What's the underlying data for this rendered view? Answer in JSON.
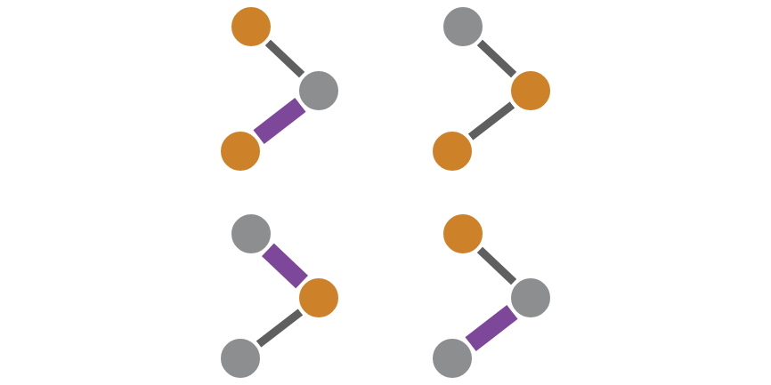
{
  "colors": {
    "orange": "#CD8128",
    "gray": "#8D8E90",
    "purple": "#7D479A",
    "dark": "#5F5F5F",
    "background": "#FFFFFF"
  },
  "graphs": [
    {
      "name": "graph-top-left",
      "nodes": [
        {
          "id": "a",
          "color": "orange"
        },
        {
          "id": "b",
          "color": "gray"
        },
        {
          "id": "c",
          "color": "orange"
        }
      ],
      "edges": [
        {
          "from": "a",
          "to": "b",
          "style": "thin",
          "color": "dark"
        },
        {
          "from": "b",
          "to": "c",
          "style": "thick",
          "color": "purple"
        }
      ]
    },
    {
      "name": "graph-top-right",
      "nodes": [
        {
          "id": "a",
          "color": "gray"
        },
        {
          "id": "b",
          "color": "orange"
        },
        {
          "id": "c",
          "color": "orange"
        }
      ],
      "edges": [
        {
          "from": "a",
          "to": "b",
          "style": "thin",
          "color": "dark"
        },
        {
          "from": "b",
          "to": "c",
          "style": "thin",
          "color": "dark"
        }
      ]
    },
    {
      "name": "graph-bottom-left",
      "nodes": [
        {
          "id": "a",
          "color": "gray"
        },
        {
          "id": "b",
          "color": "orange"
        },
        {
          "id": "c",
          "color": "gray"
        }
      ],
      "edges": [
        {
          "from": "a",
          "to": "b",
          "style": "thick",
          "color": "purple"
        },
        {
          "from": "b",
          "to": "c",
          "style": "thin",
          "color": "dark"
        }
      ]
    },
    {
      "name": "graph-bottom-right",
      "nodes": [
        {
          "id": "a",
          "color": "orange"
        },
        {
          "id": "b",
          "color": "gray"
        },
        {
          "id": "c",
          "color": "gray"
        }
      ],
      "edges": [
        {
          "from": "a",
          "to": "b",
          "style": "thin",
          "color": "dark"
        },
        {
          "from": "b",
          "to": "c",
          "style": "thick",
          "color": "purple"
        }
      ]
    }
  ]
}
